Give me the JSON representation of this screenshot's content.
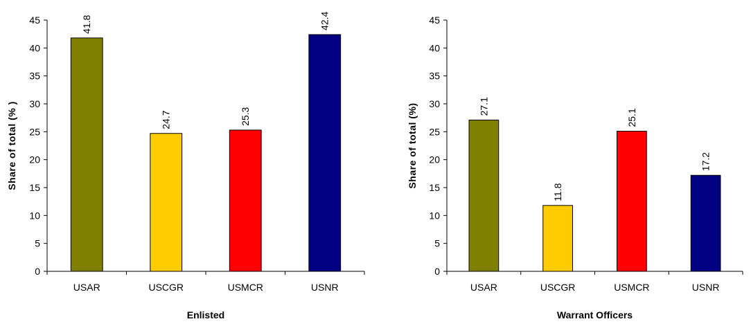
{
  "chart_data": [
    {
      "type": "bar",
      "categories": [
        "USAR",
        "USCGR",
        "USMCR",
        "USNR"
      ],
      "values": [
        41.8,
        24.7,
        25.3,
        42.4
      ],
      "data_labels": [
        "41.8",
        "24.7",
        "25.3",
        "42.4"
      ],
      "colors": [
        "#808000",
        "#FFCC00",
        "#FF0000",
        "#000080"
      ],
      "xlabel": "Enlisted",
      "ylabel": "Share of total (% )",
      "ylim": [
        0,
        45
      ],
      "yticks": [
        0,
        5,
        10,
        15,
        20,
        25,
        30,
        35,
        40,
        45
      ],
      "grid": false
    },
    {
      "type": "bar",
      "categories": [
        "USAR",
        "USCGR",
        "USMCR",
        "USNR"
      ],
      "values": [
        27.1,
        11.8,
        25.1,
        17.2
      ],
      "data_labels": [
        "27.1",
        "11.8",
        "25.1",
        "17.2"
      ],
      "colors": [
        "#808000",
        "#FFCC00",
        "#FF0000",
        "#000080"
      ],
      "xlabel": "Warrant Officers",
      "ylabel": "Share of total (%)",
      "ylim": [
        0,
        45
      ],
      "yticks": [
        0,
        5,
        10,
        15,
        20,
        25,
        30,
        35,
        40,
        45
      ],
      "grid": false
    }
  ]
}
